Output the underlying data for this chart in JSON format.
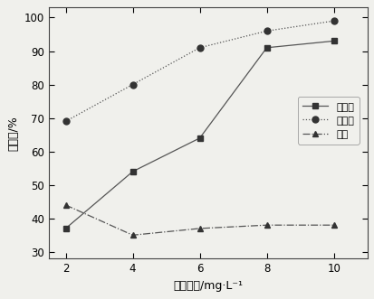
{
  "x": [
    2,
    4,
    6,
    8,
    10
  ],
  "magnetite": [
    37,
    54,
    64,
    91,
    93
  ],
  "hematite": [
    69,
    80,
    91,
    96,
    99
  ],
  "quartz": [
    44,
    35,
    37,
    38,
    38
  ],
  "xlabel": "淀粉用量/mg·L⁻¹",
  "ylabel": "回收率/%",
  "xlim": [
    1.5,
    11
  ],
  "ylim": [
    28,
    103
  ],
  "yticks": [
    30,
    40,
    50,
    60,
    70,
    80,
    90,
    100
  ],
  "xticks": [
    2,
    4,
    6,
    8,
    10
  ],
  "legend_labels": [
    "磁铁矿",
    "赤铁矿",
    "石英"
  ],
  "line_color": "#555555",
  "marker_color": "#333333",
  "background_color": "#f0f0ec",
  "plot_bg_color": "#f0f0ec",
  "magnetite_linestyle": "-",
  "hematite_linestyle": ":",
  "quartz_linestyle": "-.",
  "linewidth": 0.9,
  "markersize": 5
}
